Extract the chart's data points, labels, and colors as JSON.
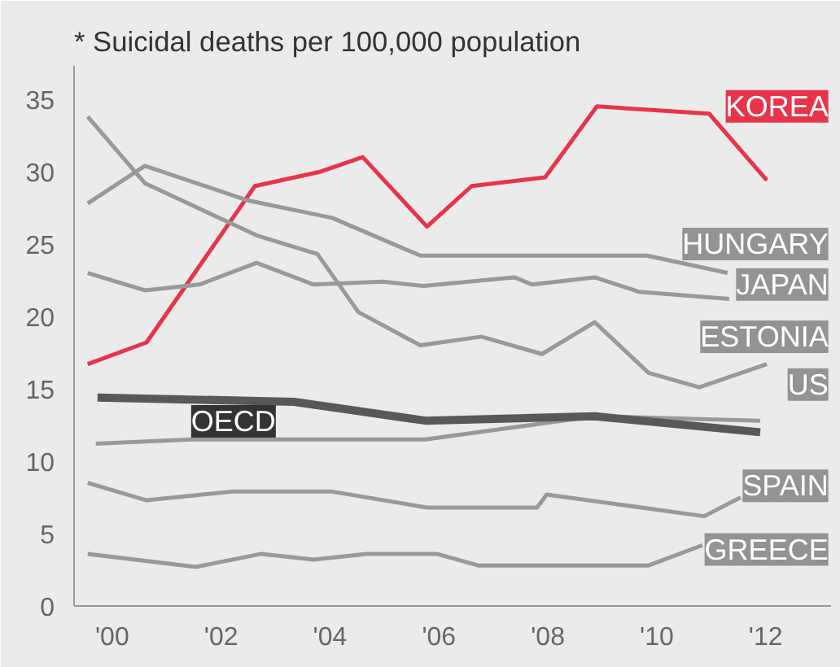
{
  "chart_data": {
    "type": "line",
    "title": "* Suicidal deaths per 100,000 population",
    "xlim": [
      1999.3,
      2013.2
    ],
    "ylim": [
      0,
      37.3
    ],
    "xticks": [
      {
        "value": 2000,
        "label": "'00"
      },
      {
        "value": 2002,
        "label": "'02"
      },
      {
        "value": 2004,
        "label": "'04"
      },
      {
        "value": 2006,
        "label": "'06"
      },
      {
        "value": 2008,
        "label": "'08"
      },
      {
        "value": 2010,
        "label": "'10"
      },
      {
        "value": 2012,
        "label": "'12"
      }
    ],
    "yticks": [
      0,
      5,
      10,
      15,
      20,
      25,
      30,
      35
    ],
    "grid": false,
    "legend": "right",
    "marker": "none",
    "line_style": "solid",
    "series": [
      {
        "name": "KOREA",
        "color": "#e8344a",
        "x": [
          1999.55,
          2000.63,
          2002.62,
          2003.83,
          2004.6,
          2005.78,
          2006.6,
          2007.95,
          2008.9,
          2010.96,
          2012.02
        ],
        "values": [
          16.7,
          18.2,
          29.0,
          30.0,
          31.0,
          26.2,
          29.0,
          29.6,
          34.5,
          34.0,
          29.4
        ]
      },
      {
        "name": "HUNGARY",
        "color": "#999999",
        "x": [
          1999.55,
          2000.6,
          2002.5,
          2004.04,
          2005.66,
          2009.82,
          2011.3
        ],
        "values": [
          27.8,
          30.4,
          28.0,
          26.8,
          24.2,
          24.2,
          23.0
        ]
      },
      {
        "name": "JAPAN",
        "color": "#999999",
        "x": [
          1999.55,
          2000.6,
          2001.6,
          2002.65,
          2003.7,
          2004.97,
          2005.72,
          2007.38,
          2007.71,
          2008.86,
          2009.67,
          2011.33
        ],
        "values": [
          23.0,
          21.8,
          22.2,
          23.7,
          22.2,
          22.4,
          22.1,
          22.7,
          22.2,
          22.7,
          21.7,
          21.2
        ]
      },
      {
        "name": "ESTONIA",
        "color": "#999999",
        "x": [
          1999.55,
          2000.6,
          2002.65,
          2003.77,
          2004.52,
          2005.66,
          2006.78,
          2007.89,
          2008.86,
          2009.85,
          2010.78,
          2012.02
        ],
        "values": [
          33.8,
          29.2,
          25.6,
          24.3,
          20.3,
          18.0,
          18.6,
          17.4,
          19.6,
          16.1,
          15.1,
          16.7
        ]
      },
      {
        "name": "US",
        "color": "#999999",
        "x": [
          1999.7,
          2001.45,
          2005.75,
          2008.86,
          2011.9
        ],
        "values": [
          11.2,
          11.5,
          11.5,
          13.1,
          12.8
        ]
      },
      {
        "name": "OECD",
        "color": "#58585b",
        "x": [
          1999.73,
          2003.34,
          2005.75,
          2008.86,
          2011.9
        ],
        "values": [
          14.4,
          14.1,
          12.8,
          13.1,
          12.0
        ]
      },
      {
        "name": "SPAIN",
        "color": "#999999",
        "x": [
          1999.55,
          2000.63,
          2002.2,
          2004.04,
          2005.78,
          2007.8,
          2007.98,
          2010.87,
          2011.54
        ],
        "values": [
          8.5,
          7.3,
          7.9,
          7.9,
          6.8,
          6.8,
          7.7,
          6.2,
          7.5
        ]
      },
      {
        "name": "GREECE",
        "color": "#999999",
        "x": [
          1999.55,
          2001.54,
          2002.74,
          2003.7,
          2004.67,
          2005.96,
          2006.72,
          2009.85,
          2010.84
        ],
        "values": [
          3.6,
          2.7,
          3.6,
          3.2,
          3.6,
          3.6,
          2.8,
          2.8,
          4.2
        ]
      }
    ]
  }
}
